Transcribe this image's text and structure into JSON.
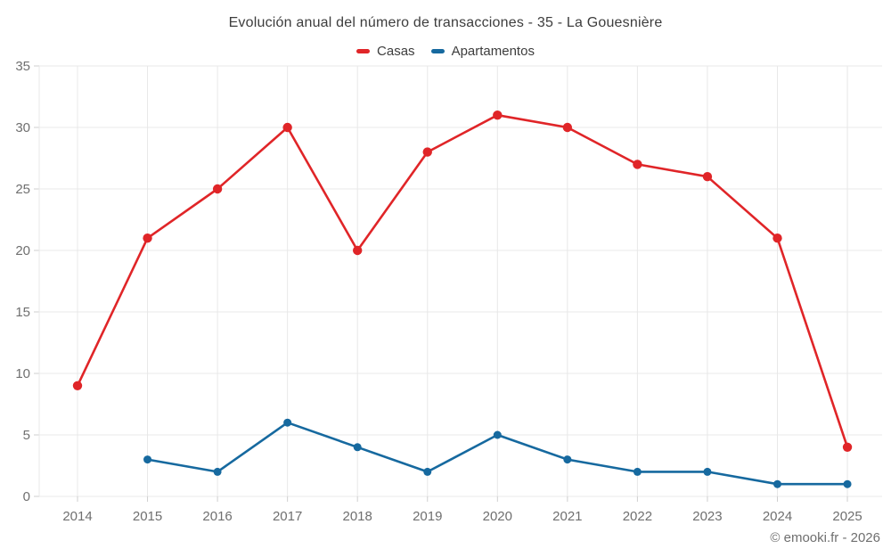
{
  "chart": {
    "title": "Evolución anual del número de transacciones - 35 - La Gouesnière",
    "attribution": "© emooki.fr - 2026"
  },
  "chart_data": {
    "type": "line",
    "title": "Evolución anual del número de transacciones - 35 - La Gouesnière",
    "categories": [
      "2014",
      "2015",
      "2016",
      "2017",
      "2018",
      "2019",
      "2020",
      "2021",
      "2022",
      "2023",
      "2024",
      "2025"
    ],
    "series": [
      {
        "name": "Casas",
        "color": "#e02528",
        "values": [
          9,
          21,
          25,
          30,
          20,
          28,
          31,
          30,
          27,
          26,
          21,
          4
        ]
      },
      {
        "name": "Apartamentos",
        "color": "#16699f",
        "values": [
          null,
          3,
          2,
          6,
          4,
          2,
          5,
          3,
          2,
          2,
          1,
          1
        ]
      }
    ],
    "xlabel": "",
    "ylabel": "",
    "ylim": [
      0,
      35
    ],
    "ytick_step": 5,
    "yticks": [
      0,
      5,
      10,
      15,
      20,
      25,
      30,
      35
    ],
    "grid": true,
    "legend_position": "top",
    "attribution": "© emooki.fr - 2026",
    "colors": {
      "gridline": "#e8e8e8",
      "tick": "#cfcfcf",
      "axis_text": "#6f6f6f",
      "title_text": "#3d3d3d"
    }
  }
}
